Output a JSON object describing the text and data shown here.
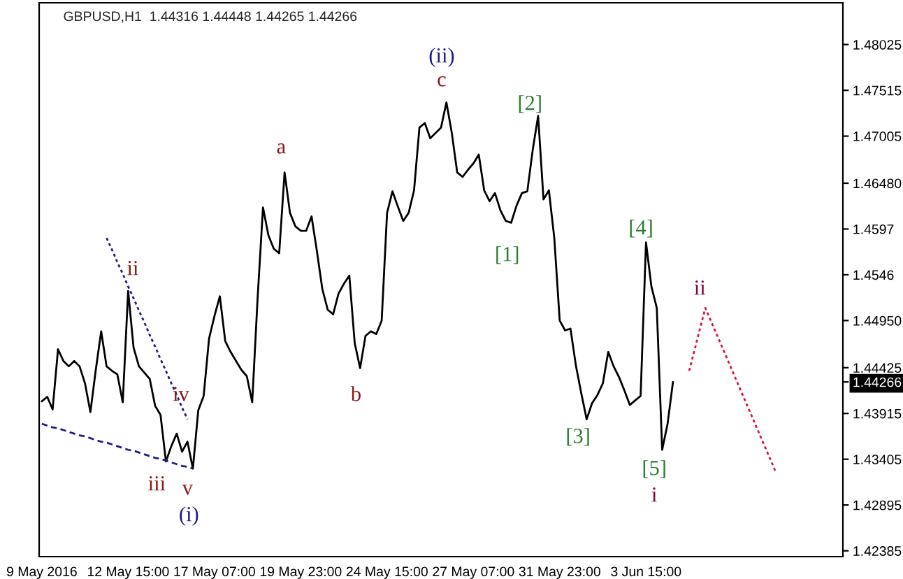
{
  "chart_data": {
    "type": "line",
    "title": "GBPUSD,H1  1.44316 1.44448 1.44265 1.44266",
    "categories": [
      "9 May 2016",
      null,
      null,
      null,
      null,
      null,
      null,
      null,
      null,
      null,
      null,
      null,
      null,
      null,
      null,
      null,
      "12 May 15:00",
      null,
      null,
      null,
      null,
      null,
      null,
      null,
      null,
      null,
      null,
      null,
      null,
      null,
      null,
      null,
      "17 May 07:00",
      null,
      null,
      null,
      null,
      null,
      null,
      null,
      null,
      null,
      null,
      null,
      null,
      null,
      null,
      null,
      "19 May 23:00",
      null,
      null,
      null,
      null,
      null,
      null,
      null,
      null,
      null,
      null,
      null,
      null,
      null,
      null,
      null,
      "24 May 15:00",
      null,
      null,
      null,
      null,
      null,
      null,
      null,
      null,
      null,
      null,
      null,
      null,
      null,
      null,
      null,
      "27 May 07:00",
      null,
      null,
      null,
      null,
      null,
      null,
      null,
      null,
      null,
      null,
      null,
      null,
      null,
      null,
      null,
      "31 May 23:00",
      null,
      null,
      null,
      null,
      null,
      null,
      null,
      null,
      null,
      null,
      null,
      null,
      null,
      null,
      null,
      "3 Jun 15:00",
      null,
      null,
      null,
      null,
      null,
      null,
      null,
      null,
      null,
      null,
      null,
      null,
      null,
      null,
      null,
      null,
      null,
      null,
      null,
      null,
      null,
      null,
      null,
      null,
      null,
      null,
      null,
      null,
      null,
      null,
      null,
      null,
      null,
      null,
      null,
      null
    ],
    "series": [
      {
        "color": "#000000",
        "line_style": "solid",
        "values": [
          1.4405,
          1.441,
          1.4396,
          1.4463,
          1.445,
          1.4444,
          1.445,
          1.4444,
          1.4425,
          1.4393,
          1.444,
          1.4483,
          1.4444,
          1.4439,
          1.4435,
          1.4404,
          1.4528,
          1.4465,
          1.4444,
          1.4437,
          1.443,
          1.44,
          1.439,
          1.4338,
          1.4355,
          1.4369,
          1.4349,
          1.436,
          1.433,
          1.4395,
          1.4411,
          1.4475,
          1.45,
          1.4522,
          1.4472,
          1.446,
          1.445,
          1.444,
          1.4433,
          1.4404,
          1.452,
          1.4621,
          1.459,
          1.4575,
          1.457,
          1.466,
          1.4615,
          1.46,
          1.4595,
          1.4595,
          1.4611,
          1.4572,
          1.453,
          1.4507,
          1.4502,
          1.4525,
          1.4536,
          1.4545,
          1.447,
          1.4442,
          1.4478,
          1.4483,
          1.448,
          1.4495,
          1.4615,
          1.4639,
          1.4622,
          1.4606,
          1.4615,
          1.464,
          1.471,
          1.4715,
          1.4698,
          1.4704,
          1.471,
          1.4738,
          1.4704,
          1.466,
          1.4655,
          1.4663,
          1.467,
          1.468,
          1.464,
          1.4628,
          1.4637,
          1.4618,
          1.4606,
          1.4604,
          1.4623,
          1.4637,
          1.4639,
          1.4685,
          1.4723,
          1.463,
          1.464,
          1.4587,
          1.4495,
          1.4484,
          1.4486,
          1.4445,
          1.4414,
          1.4385,
          1.4403,
          1.4412,
          1.4425,
          1.446,
          1.4444,
          1.4432,
          1.4417,
          1.4401,
          1.4406,
          1.4411,
          1.4582,
          1.4533,
          1.4509,
          1.4351,
          1.438,
          1.44266,
          null,
          null,
          null,
          null,
          null,
          null,
          null,
          null,
          null,
          null,
          null,
          null,
          null,
          null,
          null,
          null,
          null,
          null,
          null,
          null,
          null,
          null,
          null,
          null,
          null,
          null,
          null,
          null,
          null,
          null,
          null
        ]
      },
      {
        "color": "#dc143c",
        "line_style": "dotted",
        "values": [
          null,
          null,
          null,
          null,
          null,
          null,
          null,
          null,
          null,
          null,
          null,
          null,
          null,
          null,
          null,
          null,
          null,
          null,
          null,
          null,
          null,
          null,
          null,
          null,
          null,
          null,
          null,
          null,
          null,
          null,
          null,
          null,
          null,
          null,
          null,
          null,
          null,
          null,
          null,
          null,
          null,
          null,
          null,
          null,
          null,
          null,
          null,
          null,
          null,
          null,
          null,
          null,
          null,
          null,
          null,
          null,
          null,
          null,
          null,
          null,
          null,
          null,
          null,
          null,
          null,
          null,
          null,
          null,
          null,
          null,
          null,
          null,
          null,
          null,
          null,
          null,
          null,
          null,
          null,
          null,
          null,
          null,
          null,
          null,
          null,
          null,
          null,
          null,
          null,
          null,
          null,
          null,
          null,
          null,
          null,
          null,
          null,
          null,
          null,
          null,
          null,
          null,
          null,
          null,
          null,
          null,
          null,
          null,
          null,
          null,
          null,
          null,
          null,
          null,
          null,
          null,
          null,
          null,
          null,
          null,
          1.4439,
          1.4462,
          1.4486,
          1.4509,
          1.4495,
          1.4481,
          1.4467,
          1.4453,
          1.4439,
          1.4425,
          1.4411,
          1.4397,
          1.4383,
          1.4369,
          1.4355,
          1.4341,
          1.4327,
          null,
          null,
          null,
          null,
          null,
          null,
          null,
          null,
          null,
          null,
          null,
          null
        ]
      },
      {
        "color": "#1c1c8c",
        "line_style": "dotted",
        "values": [
          null,
          null,
          null,
          null,
          null,
          null,
          null,
          null,
          null,
          null,
          null,
          null,
          1.4587,
          1.4574,
          1.456,
          1.4547,
          1.4533,
          1.452,
          1.4506,
          1.4493,
          1.4479,
          1.4466,
          1.4452,
          1.4439,
          1.4425,
          1.4412,
          1.4398,
          1.4385,
          null,
          null,
          null,
          null,
          null,
          null,
          null,
          null,
          null,
          null,
          null,
          null,
          null,
          null,
          null,
          null,
          null,
          null,
          null,
          null,
          null,
          null,
          null,
          null,
          null,
          null,
          null,
          null,
          null,
          null,
          null,
          null,
          null,
          null,
          null,
          null,
          null,
          null,
          null,
          null,
          null,
          null,
          null,
          null,
          null,
          null,
          null,
          null,
          null,
          null,
          null,
          null,
          null,
          null,
          null,
          null,
          null,
          null,
          null,
          null,
          null,
          null,
          null,
          null,
          null,
          null,
          null,
          null,
          null,
          null,
          null,
          null,
          null,
          null,
          null,
          null,
          null,
          null,
          null,
          null,
          null,
          null,
          null,
          null,
          null,
          null,
          null,
          null,
          null,
          null,
          null,
          null,
          null,
          null,
          null,
          null,
          null,
          null,
          null,
          null,
          null,
          null,
          null,
          null,
          null,
          null,
          null,
          null,
          null,
          null,
          null,
          null,
          null,
          null,
          null,
          null,
          null,
          null,
          null,
          null,
          null
        ]
      },
      {
        "color": "#1c1c8c",
        "line_style": "dashed",
        "values": [
          1.438,
          1.4378,
          1.4376,
          1.4375,
          1.4373,
          1.4371,
          1.4369,
          1.4367,
          1.4366,
          1.4364,
          1.4362,
          1.436,
          1.4359,
          1.4357,
          1.4355,
          1.4353,
          1.4351,
          1.435,
          1.4348,
          1.4346,
          1.4344,
          1.4342,
          1.4341,
          1.4339,
          1.4337,
          1.4335,
          1.4333,
          1.4332,
          1.433,
          null,
          null,
          null,
          null,
          null,
          null,
          null,
          null,
          null,
          null,
          null,
          null,
          null,
          null,
          null,
          null,
          null,
          null,
          null,
          null,
          null,
          null,
          null,
          null,
          null,
          null,
          null,
          null,
          null,
          null,
          null,
          null,
          null,
          null,
          null,
          null,
          null,
          null,
          null,
          null,
          null,
          null,
          null,
          null,
          null,
          null,
          null,
          null,
          null,
          null,
          null,
          null,
          null,
          null,
          null,
          null,
          null,
          null,
          null,
          null,
          null,
          null,
          null,
          null,
          null,
          null,
          null,
          null,
          null,
          null,
          null,
          null,
          null,
          null,
          null,
          null,
          null,
          null,
          null,
          null,
          null,
          null,
          null,
          null,
          null,
          null,
          null,
          null,
          null,
          null,
          null,
          null,
          null,
          null,
          null,
          null,
          null,
          null,
          null,
          null,
          null,
          null,
          null,
          null,
          null,
          null,
          null,
          null,
          null,
          null,
          null,
          null,
          null,
          null,
          null,
          null,
          null,
          null,
          null,
          null
        ]
      }
    ],
    "ylim": [
      1.4232,
      1.4849
    ],
    "yticks": [
      1.42385,
      1.42895,
      1.43405,
      1.43915,
      1.44266,
      1.44425,
      {
        "value": 1.4495,
        "label": "1.44950"
      },
      1.4546,
      1.4597,
      {
        "value": 1.4648,
        "label": "1.46480"
      },
      1.47005,
      1.47515,
      1.48025
    ],
    "grid": false,
    "annotations": [
      "ii",
      "iv",
      "iii",
      "v",
      "(i)",
      "a",
      "b",
      "(ii)",
      "c",
      "[2]",
      "[1]",
      "[3]",
      "[4]",
      "[5]",
      "i",
      "ii"
    ]
  }
}
